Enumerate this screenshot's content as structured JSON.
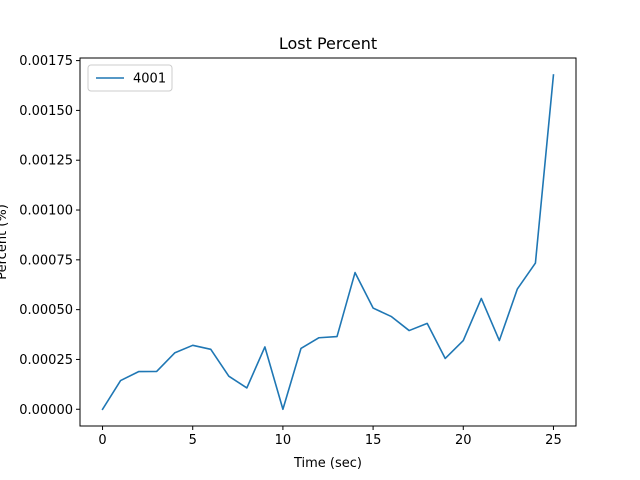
{
  "colors": {
    "series_line": "#1f77b4",
    "axes": "#000000",
    "legend_border": "#cccccc",
    "background": "#ffffff"
  },
  "chart_data": {
    "type": "line",
    "title": "Lost Percent",
    "xlabel": "Time (sec)",
    "ylabel": "Percent (%)",
    "xlim": [
      -1.25,
      26.25
    ],
    "ylim": [
      -8.4e-05,
      0.001763
    ],
    "xticks": [
      0,
      5,
      10,
      15,
      20,
      25
    ],
    "xtick_labels": [
      "0",
      "5",
      "10",
      "15",
      "20",
      "25"
    ],
    "yticks": [
      0,
      0.00025,
      0.0005,
      0.00075,
      0.001,
      0.00125,
      0.0015,
      0.00175
    ],
    "ytick_labels": [
      "0.00000",
      "0.00025",
      "0.00050",
      "0.00075",
      "0.00100",
      "0.00125",
      "0.00150",
      "0.00175"
    ],
    "grid": false,
    "legend_position": "upper left",
    "series": [
      {
        "name": "4001",
        "x": [
          0,
          1,
          2,
          3,
          4,
          5,
          6,
          7,
          8,
          9,
          10,
          11,
          12,
          13,
          14,
          15,
          16,
          17,
          18,
          19,
          20,
          21,
          22,
          23,
          24,
          25
        ],
        "y": [
          0.0,
          0.000144,
          0.000189,
          0.00019,
          0.000283,
          0.000321,
          0.000301,
          0.000166,
          0.000107,
          0.000313,
          0.0,
          0.000305,
          0.000359,
          0.000365,
          0.000686,
          0.000508,
          0.000466,
          0.000395,
          0.000431,
          0.000255,
          0.000345,
          0.000556,
          0.000345,
          0.000604,
          0.000734,
          0.001678
        ]
      }
    ]
  }
}
